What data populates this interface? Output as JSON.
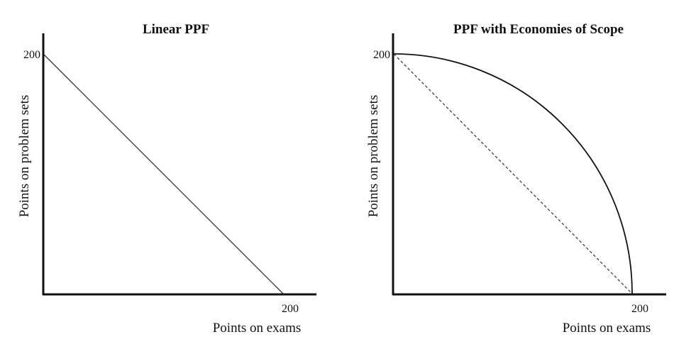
{
  "chart_data": [
    {
      "type": "line",
      "title": "Linear PPF",
      "xlabel": "Points on exams",
      "ylabel": "Points on problem sets",
      "xlim": [
        0,
        200
      ],
      "ylim": [
        0,
        200
      ],
      "x_tick_labels": [
        "200"
      ],
      "y_tick_labels": [
        "200"
      ],
      "grid": false,
      "series": [
        {
          "style": "solid",
          "color": "#333333",
          "points": [
            [
              0,
              200
            ],
            [
              200,
              0
            ]
          ]
        }
      ]
    },
    {
      "type": "line",
      "title": "PPF with Economies of Scope",
      "xlabel": "Points on exams",
      "ylabel": "Points on problem sets",
      "xlim": [
        0,
        200
      ],
      "ylim": [
        0,
        200
      ],
      "x_tick_labels": [
        "200"
      ],
      "y_tick_labels": [
        "200"
      ],
      "grid": false,
      "series": [
        {
          "style": "solid",
          "color": "#111111",
          "shape": "concave",
          "points": [
            [
              0,
              200
            ],
            [
              20,
              199
            ],
            [
              40,
              196
            ],
            [
              60,
              191
            ],
            [
              80,
              183
            ],
            [
              100,
              173
            ],
            [
              120,
              160
            ],
            [
              140,
              143
            ],
            [
              160,
              120
            ],
            [
              180,
              87
            ],
            [
              200,
              0
            ]
          ]
        },
        {
          "style": "dashed",
          "color": "#333333",
          "points": [
            [
              0,
              200
            ],
            [
              200,
              0
            ]
          ]
        }
      ]
    }
  ]
}
